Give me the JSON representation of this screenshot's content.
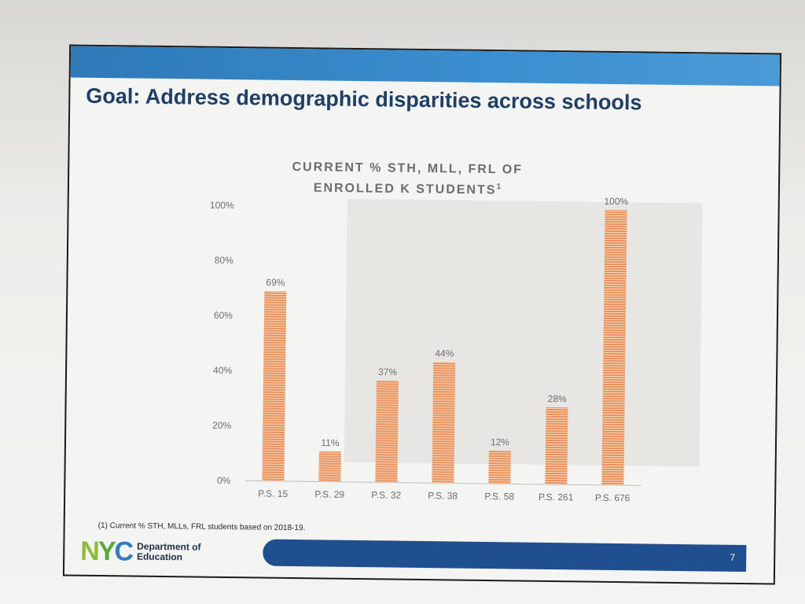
{
  "slide": {
    "title": "Goal: Address demographic disparities across schools",
    "footnote": "(1) Current % STH, MLLs, FRL students based on 2018-19.",
    "page_number": "7",
    "logo": {
      "mark": [
        "N",
        "Y",
        "C"
      ],
      "department": "Department of\nEducation"
    }
  },
  "chart_data": {
    "type": "bar",
    "title": "CURRENT % STH, MLL, FRL OF ENROLLED K STUDENTS",
    "title_lines": [
      "CURRENT % STH, MLL, FRL OF",
      "ENROLLED K STUDENTS"
    ],
    "title_footnote_marker": "1",
    "categories": [
      "P.S. 15",
      "P.S. 29",
      "P.S. 32",
      "P.S. 38",
      "P.S. 58",
      "P.S. 261",
      "P.S. 676"
    ],
    "values": [
      69,
      11,
      37,
      44,
      12,
      28,
      100
    ],
    "data_labels": [
      "69%",
      "11%",
      "37%",
      "44%",
      "12%",
      "28%",
      "100%"
    ],
    "y_ticks": [
      "0%",
      "20%",
      "40%",
      "60%",
      "80%",
      "100%"
    ],
    "ylim": [
      0,
      100
    ],
    "xlabel": "",
    "ylabel": "",
    "grid": false,
    "colors": {
      "bar": "#e8915a",
      "bar_stripe": "#f7d9c2",
      "axis": "#bdbdbd",
      "label": "#6d6d6d"
    }
  }
}
